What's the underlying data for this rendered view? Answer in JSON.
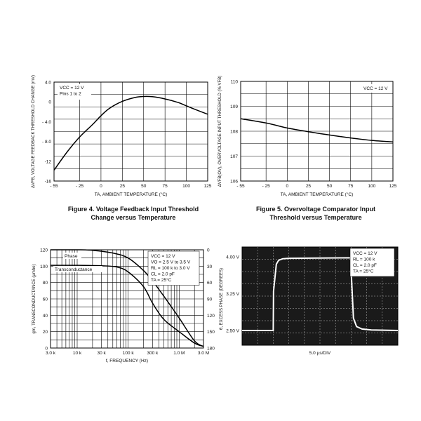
{
  "chart_data": [
    {
      "type": "line",
      "title": "Figure 4. Voltage Feedback Input Threshold Change versus Temperature",
      "title_lines": [
        "Figure 4. Voltage Feedback Input Threshold",
        "Change versus Temperature"
      ],
      "xlabel": "TA, AMBIENT TEMPERATURE (°C)",
      "ylabel": "ΔVFB, VOLTAGE FEEDBACK THRESHOLD CHANGE (mV)",
      "xlim": [
        -55,
        125
      ],
      "ylim": [
        -16,
        4
      ],
      "xticks": [
        -55,
        -25,
        0,
        25,
        50,
        75,
        100,
        125
      ],
      "xtick_labels": [
        "- 55",
        "- 25",
        "0",
        "25",
        "50",
        "75",
        "100",
        "125"
      ],
      "yticks": [
        4,
        0,
        -4,
        -8,
        -12,
        -16
      ],
      "ytick_labels": [
        "4.0",
        "0",
        "- 4.0",
        "- 8.0",
        "-12",
        "-16"
      ],
      "grid": true,
      "annotations": [
        "VCC = 12 V",
        "Pins 1 to 2"
      ],
      "series": [
        {
          "x": [
            -55,
            -40,
            -25,
            -10,
            0,
            10,
            25,
            40,
            50,
            60,
            75,
            90,
            100,
            110,
            125
          ],
          "y": [
            -13.8,
            -10.2,
            -7.1,
            -4.6,
            -2.8,
            -1.3,
            0.1,
            0.9,
            1.1,
            1.05,
            0.6,
            -0.1,
            -0.8,
            -1.5,
            -2.5
          ]
        }
      ]
    },
    {
      "type": "line",
      "title": "Figure 5. Overvoltage Comparator Input Threshold versus Temperature",
      "title_lines": [
        "Figure 5. Overvoltage Comparator Input",
        "Threshold versus Temperature"
      ],
      "xlabel": "TA, AMBIENT TEMPERATURE (°C)",
      "ylabel": "ΔVFB(OV), OVERVOLTAGE INPUT THRESHOLD (% VFB)",
      "xlim": [
        -55,
        125
      ],
      "ylim": [
        106,
        110
      ],
      "xticks": [
        -55,
        -25,
        0,
        25,
        50,
        75,
        100,
        125
      ],
      "xtick_labels": [
        "- 55",
        "- 25",
        "0",
        "25",
        "50",
        "75",
        "100",
        "125"
      ],
      "yticks": [
        110,
        109,
        108,
        107,
        106
      ],
      "ytick_labels": [
        "110",
        "109",
        "108",
        "107",
        "106"
      ],
      "grid": true,
      "annotations": [
        "VCC = 12 V"
      ],
      "series": [
        {
          "x": [
            -55,
            -25,
            0,
            25,
            50,
            75,
            100,
            125
          ],
          "y": [
            108.5,
            108.33,
            108.13,
            107.98,
            107.85,
            107.73,
            107.63,
            107.57
          ]
        }
      ]
    },
    {
      "type": "line",
      "xscale": "log",
      "xlabel": "f, FREQUENCY (Hz)",
      "ylabel": "gm, TRANSCONDUCTANCE (µmho)",
      "y2label": "θ, EXCESS PHASE (DEGREES)",
      "xlim": [
        3000,
        3000000
      ],
      "ylim": [
        0,
        120
      ],
      "y2lim": [
        180,
        0
      ],
      "xticks": [
        3000,
        10000,
        30000,
        100000,
        300000,
        1000000,
        3000000
      ],
      "xtick_labels": [
        "3.0 k",
        "10 k",
        "30 k",
        "100 k",
        "300 k",
        "1.0 M",
        "3.0 M"
      ],
      "yticks": [
        120,
        100,
        80,
        60,
        40,
        20,
        0
      ],
      "ytick_labels": [
        "120",
        "100",
        "80",
        "60",
        "40",
        "20",
        "0"
      ],
      "y2ticks": [
        0,
        30,
        60,
        90,
        120,
        150,
        180
      ],
      "y2tick_labels": [
        "0",
        "30",
        "60",
        "90",
        "120",
        "150",
        "180"
      ],
      "grid": true,
      "annotations": [
        "VCC = 12 V",
        "VO = 2.5 V to 3.5 V",
        "RL = 100 k to 3.0 V",
        "CL = 2.0 pF",
        "TA = 25°C"
      ],
      "series": [
        {
          "name": "Phase",
          "axis": "right",
          "x": [
            3000,
            10000,
            20000,
            50000,
            100000,
            200000,
            300000,
            500000,
            1000000,
            2000000,
            3000000
          ],
          "y": [
            0,
            0,
            1,
            6,
            15,
            38,
            57,
            85,
            125,
            167,
            177
          ]
        },
        {
          "name": "Transconductance",
          "axis": "left",
          "x": [
            3000,
            10000,
            30000,
            60000,
            100000,
            200000,
            300000,
            500000,
            1000000,
            2000000,
            3000000
          ],
          "y": [
            101,
            101,
            100.5,
            99,
            93,
            75,
            55,
            35,
            20,
            6,
            2
          ]
        }
      ]
    },
    {
      "type": "line",
      "style": "oscilloscope",
      "xlabel": "5.0 µs/DIV",
      "ylim": [
        2.2,
        4.2
      ],
      "yticks": [
        4.0,
        3.25,
        2.5
      ],
      "ytick_labels": [
        "4.00 V",
        "3.25 V",
        "2.50 V"
      ],
      "x_divisions": 10,
      "grid": true,
      "annotations": [
        "VCC = 12 V",
        "RL = 100 k",
        "CL = 2.0 pF",
        "TA = 25°C"
      ],
      "series": [
        {
          "x": [
            0,
            2,
            2.02,
            2.2,
            2.35,
            2.6,
            3,
            7,
            7.02,
            7.15,
            7.35,
            7.7,
            8.3,
            10
          ],
          "y": [
            2.5,
            2.5,
            3.3,
            3.85,
            3.93,
            3.96,
            3.97,
            3.98,
            3.6,
            2.75,
            2.58,
            2.53,
            2.51,
            2.5
          ]
        }
      ]
    }
  ],
  "colors": {
    "line": "#000000",
    "grid": "#000000",
    "scope_bg": "#1a1a1a",
    "scope_trace": "#ffffff"
  }
}
